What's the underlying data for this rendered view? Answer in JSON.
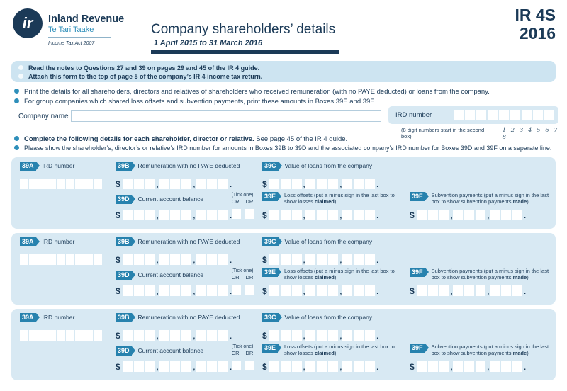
{
  "header": {
    "logo_text": "ir",
    "org_name": "Inland Revenue",
    "org_name_maori": "Te Tari Taake",
    "act_note": "Income Tax Act 2007",
    "title": "Company shareholders’ details",
    "period": "1 April 2015 to 31 March 2016",
    "form_code": "IR 4S",
    "form_year": "2016"
  },
  "notices": [
    "Read the notes to Questions 27 and 39 on pages 29 and 45 of the IR 4 guide.",
    "Attach this form to the top of page 5 of the company’s IR 4 income tax return."
  ],
  "instructions": [
    "Print the details for all shareholders, directors and relatives of shareholders who received remuneration (with no PAYE deducted) or loans from the company.",
    "For group companies which shared loss offsets and subvention payments, print these amounts in Boxes 39E and 39F."
  ],
  "company": {
    "name_label": "Company name",
    "ird_label": "IRD number",
    "ird_hint": "(8 digit numbers start in the second box)",
    "ird_hint_digits": "1 2 3 4 5 6 7 8"
  },
  "complete_section": {
    "intro_bold": "Complete the following details for each shareholder, director or relative.",
    "intro_rest": " See page 45 of the IR 4 guide.",
    "line2": "Please show the shareholder’s, director’s or relative’s IRD number for amounts in Boxes 39B to 39D and the associated company’s IRD number for Boxes 39D and 39F on a separate line."
  },
  "fields": {
    "a": {
      "tag": "39A",
      "label": "IRD number"
    },
    "b": {
      "tag": "39B",
      "label": "Remuneration with no PAYE deducted"
    },
    "c": {
      "tag": "39C",
      "label": "Value of loans from the company"
    },
    "d": {
      "tag": "39D",
      "label": "Current account balance",
      "tick_label": "(Tick one)",
      "cr": "CR",
      "dr": "DR"
    },
    "e": {
      "tag": "39E",
      "label_pre": "Loss offsets (put a minus sign in the last box to show losses ",
      "label_bold": "claimed",
      "label_post": ")"
    },
    "f": {
      "tag": "39F",
      "label_pre": "Subvention payments (put a minus sign in the last box to show subvention payments ",
      "label_bold": "made",
      "label_post": ")"
    }
  },
  "symbols": {
    "dollar": "$",
    "comma": ",",
    "period": "."
  },
  "blocks_count": 3,
  "colors": {
    "navy": "#1b3a57",
    "tag_blue": "#2782ae",
    "panel_blue": "#d8e9f3",
    "notice_blue": "#cde4f1",
    "bullet_teal": "#2e8fba"
  }
}
